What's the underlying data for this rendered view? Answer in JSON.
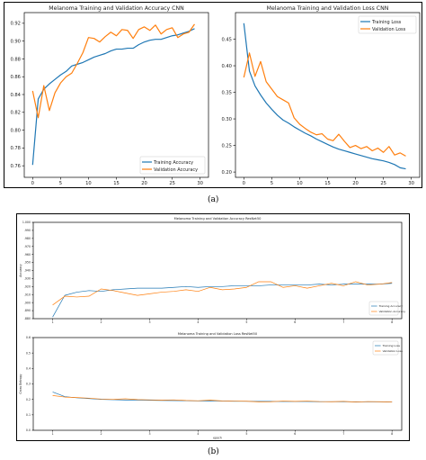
{
  "panel_labels": {
    "a": "(a)",
    "b": "(b)"
  },
  "chart_data": [
    {
      "id": "cnn-accuracy",
      "type": "line",
      "title": "Melanoma Training and Validation Accuracy CNN",
      "xlabel": "",
      "ylabel": "",
      "xlim": [
        -1.5,
        31.5
      ],
      "ylim": [
        0.747,
        0.932
      ],
      "xticks": [
        0,
        5,
        10,
        15,
        20,
        25,
        30
      ],
      "yticks": [
        0.76,
        0.78,
        0.8,
        0.82,
        0.84,
        0.86,
        0.88,
        0.9,
        0.92
      ],
      "ytick_labels": [
        "0.76",
        "0.78",
        "0.80",
        "0.82",
        "0.84",
        "0.86",
        "0.88",
        "0.90",
        "0.92"
      ],
      "legend_position": "bottom-right",
      "grid": false,
      "series": [
        {
          "name": "Training Accuracy",
          "color": "#1f77b4",
          "x": [
            0,
            1,
            2,
            3,
            4,
            5,
            6,
            7,
            8,
            9,
            10,
            11,
            12,
            13,
            14,
            15,
            16,
            17,
            18,
            19,
            20,
            21,
            22,
            23,
            24,
            25,
            26,
            27,
            28,
            29
          ],
          "values": [
            0.761,
            0.835,
            0.846,
            0.852,
            0.857,
            0.862,
            0.866,
            0.872,
            0.874,
            0.876,
            0.879,
            0.882,
            0.884,
            0.886,
            0.889,
            0.891,
            0.891,
            0.892,
            0.892,
            0.896,
            0.899,
            0.901,
            0.902,
            0.902,
            0.904,
            0.906,
            0.907,
            0.909,
            0.911,
            0.914
          ]
        },
        {
          "name": "Validation Accuracy",
          "color": "#ff7f0e",
          "x": [
            0,
            1,
            2,
            3,
            4,
            5,
            6,
            7,
            8,
            9,
            10,
            11,
            12,
            13,
            14,
            15,
            16,
            17,
            18,
            19,
            20,
            21,
            22,
            23,
            24,
            25,
            26,
            27,
            28,
            29
          ],
          "values": [
            0.844,
            0.814,
            0.85,
            0.822,
            0.842,
            0.853,
            0.86,
            0.864,
            0.875,
            0.887,
            0.904,
            0.903,
            0.899,
            0.905,
            0.91,
            0.906,
            0.913,
            0.912,
            0.903,
            0.913,
            0.916,
            0.912,
            0.918,
            0.908,
            0.913,
            0.915,
            0.904,
            0.908,
            0.91,
            0.919
          ]
        }
      ]
    },
    {
      "id": "cnn-loss",
      "type": "line",
      "title": "Melanoma Training and Validation Loss CNN",
      "xlabel": "",
      "ylabel": "",
      "xlim": [
        -1.5,
        31.5
      ],
      "ylim": [
        0.19,
        0.5
      ],
      "xticks": [
        0,
        5,
        10,
        15,
        20,
        25,
        30
      ],
      "yticks": [
        0.2,
        0.25,
        0.3,
        0.35,
        0.4,
        0.45
      ],
      "ytick_labels": [
        "0.20",
        "0.25",
        "0.30",
        "0.35",
        "0.40",
        "0.45"
      ],
      "legend_position": "top-right",
      "grid": false,
      "series": [
        {
          "name": "Training Loss",
          "color": "#1f77b4",
          "x": [
            0,
            1,
            2,
            3,
            4,
            5,
            6,
            7,
            8,
            9,
            10,
            11,
            12,
            13,
            14,
            15,
            16,
            17,
            18,
            19,
            20,
            21,
            22,
            23,
            24,
            25,
            26,
            27,
            28,
            29
          ],
          "values": [
            0.48,
            0.39,
            0.362,
            0.345,
            0.33,
            0.318,
            0.307,
            0.298,
            0.292,
            0.285,
            0.279,
            0.273,
            0.268,
            0.262,
            0.257,
            0.252,
            0.247,
            0.243,
            0.24,
            0.237,
            0.234,
            0.231,
            0.228,
            0.225,
            0.223,
            0.221,
            0.218,
            0.214,
            0.208,
            0.206
          ]
        },
        {
          "name": "Validation Loss",
          "color": "#ff7f0e",
          "x": [
            0,
            1,
            2,
            3,
            4,
            5,
            6,
            7,
            8,
            9,
            10,
            11,
            12,
            13,
            14,
            15,
            16,
            17,
            18,
            19,
            20,
            21,
            22,
            23,
            24,
            25,
            26,
            27,
            28,
            29
          ],
          "values": [
            0.378,
            0.424,
            0.38,
            0.408,
            0.37,
            0.356,
            0.342,
            0.336,
            0.33,
            0.302,
            0.29,
            0.282,
            0.275,
            0.27,
            0.272,
            0.262,
            0.259,
            0.271,
            0.258,
            0.246,
            0.25,
            0.244,
            0.248,
            0.24,
            0.245,
            0.237,
            0.248,
            0.232,
            0.236,
            0.23
          ]
        }
      ]
    },
    {
      "id": "resnet-accuracy",
      "type": "line",
      "title": "Melanoma Training and Validation Accuracy ResNet50",
      "xlabel": "",
      "ylabel": "Accuracy",
      "xlim": [
        0.6,
        8.2
      ],
      "ylim": [
        0.88,
        1.0
      ],
      "xticks": [
        1,
        2,
        3,
        4,
        5,
        6,
        7,
        8
      ],
      "yticks": [
        0.88,
        0.89,
        0.9,
        0.91,
        0.92,
        0.93,
        0.94,
        0.95,
        0.96,
        0.97,
        0.98,
        0.99,
        1.0
      ],
      "ytick_labels": [
        ".880",
        ".890",
        ".900",
        ".910",
        ".920",
        ".930",
        ".940",
        ".950",
        ".960",
        ".970",
        ".980",
        ".990",
        "1.000"
      ],
      "legend_position": "bottom-right",
      "grid": false,
      "series": [
        {
          "name": "Training Accuracy",
          "color": "#1f77b4",
          "x": [
            1,
            1.25,
            1.5,
            1.75,
            2,
            2.25,
            2.5,
            2.75,
            3,
            3.25,
            3.5,
            3.75,
            4,
            4.25,
            4.5,
            4.75,
            5,
            5.25,
            5.5,
            5.75,
            6,
            6.25,
            6.5,
            6.75,
            7,
            7.25,
            7.5,
            7.75,
            8
          ],
          "values": [
            0.882,
            0.909,
            0.913,
            0.915,
            0.914,
            0.916,
            0.917,
            0.918,
            0.918,
            0.918,
            0.919,
            0.92,
            0.919,
            0.92,
            0.92,
            0.921,
            0.921,
            0.921,
            0.922,
            0.922,
            0.922,
            0.922,
            0.923,
            0.922,
            0.923,
            0.923,
            0.923,
            0.923,
            0.924
          ]
        },
        {
          "name": "Validation Accuracy",
          "color": "#ff7f0e",
          "x": [
            1,
            1.25,
            1.5,
            1.75,
            2,
            2.25,
            2.5,
            2.75,
            3,
            3.25,
            3.5,
            3.75,
            4,
            4.25,
            4.5,
            4.75,
            5,
            5.25,
            5.5,
            5.75,
            6,
            6.25,
            6.5,
            6.75,
            7,
            7.25,
            7.5,
            7.75,
            8
          ],
          "values": [
            0.897,
            0.908,
            0.907,
            0.908,
            0.917,
            0.915,
            0.912,
            0.909,
            0.911,
            0.913,
            0.914,
            0.916,
            0.914,
            0.919,
            0.916,
            0.917,
            0.919,
            0.926,
            0.926,
            0.919,
            0.921,
            0.918,
            0.921,
            0.924,
            0.921,
            0.926,
            0.922,
            0.923,
            0.925
          ]
        }
      ]
    },
    {
      "id": "resnet-loss",
      "type": "line",
      "title": "Melanoma Training and Validation Loss ResNet50",
      "xlabel": "epoch",
      "ylabel": "Cross Entropy",
      "xlim": [
        0.6,
        8.2
      ],
      "ylim": [
        0.0,
        0.6
      ],
      "xticks": [
        1,
        2,
        3,
        4,
        5,
        6,
        7,
        8
      ],
      "yticks": [
        0.0,
        0.1,
        0.2,
        0.3,
        0.4,
        0.5,
        0.6
      ],
      "ytick_labels": [
        "0.0",
        "0.1",
        "0.2",
        "0.3",
        "0.4",
        "0.5",
        "0.6"
      ],
      "legend_position": "top-right",
      "grid": false,
      "series": [
        {
          "name": "Training Loss",
          "color": "#1f77b4",
          "x": [
            1,
            1.25,
            1.5,
            1.75,
            2,
            2.25,
            2.5,
            2.75,
            3,
            3.25,
            3.5,
            3.75,
            4,
            4.25,
            4.5,
            4.75,
            5,
            5.25,
            5.5,
            5.75,
            6,
            6.25,
            6.5,
            6.75,
            7,
            7.25,
            7.5,
            7.75,
            8
          ],
          "values": [
            0.248,
            0.218,
            0.21,
            0.205,
            0.2,
            0.198,
            0.196,
            0.195,
            0.194,
            0.193,
            0.192,
            0.191,
            0.19,
            0.19,
            0.189,
            0.188,
            0.188,
            0.187,
            0.187,
            0.186,
            0.186,
            0.186,
            0.185,
            0.185,
            0.185,
            0.184,
            0.184,
            0.184,
            0.183
          ]
        },
        {
          "name": "Validation Loss",
          "color": "#ff7f0e",
          "x": [
            1,
            1.25,
            1.5,
            1.75,
            2,
            2.25,
            2.5,
            2.75,
            3,
            3.25,
            3.5,
            3.75,
            4,
            4.25,
            4.5,
            4.75,
            5,
            5.25,
            5.5,
            5.75,
            6,
            6.25,
            6.5,
            6.75,
            7,
            7.25,
            7.5,
            7.75,
            8
          ],
          "values": [
            0.225,
            0.215,
            0.212,
            0.208,
            0.202,
            0.2,
            0.204,
            0.199,
            0.197,
            0.195,
            0.197,
            0.193,
            0.191,
            0.195,
            0.19,
            0.189,
            0.188,
            0.184,
            0.185,
            0.189,
            0.187,
            0.189,
            0.186,
            0.185,
            0.187,
            0.183,
            0.186,
            0.185,
            0.183
          ]
        }
      ]
    }
  ]
}
